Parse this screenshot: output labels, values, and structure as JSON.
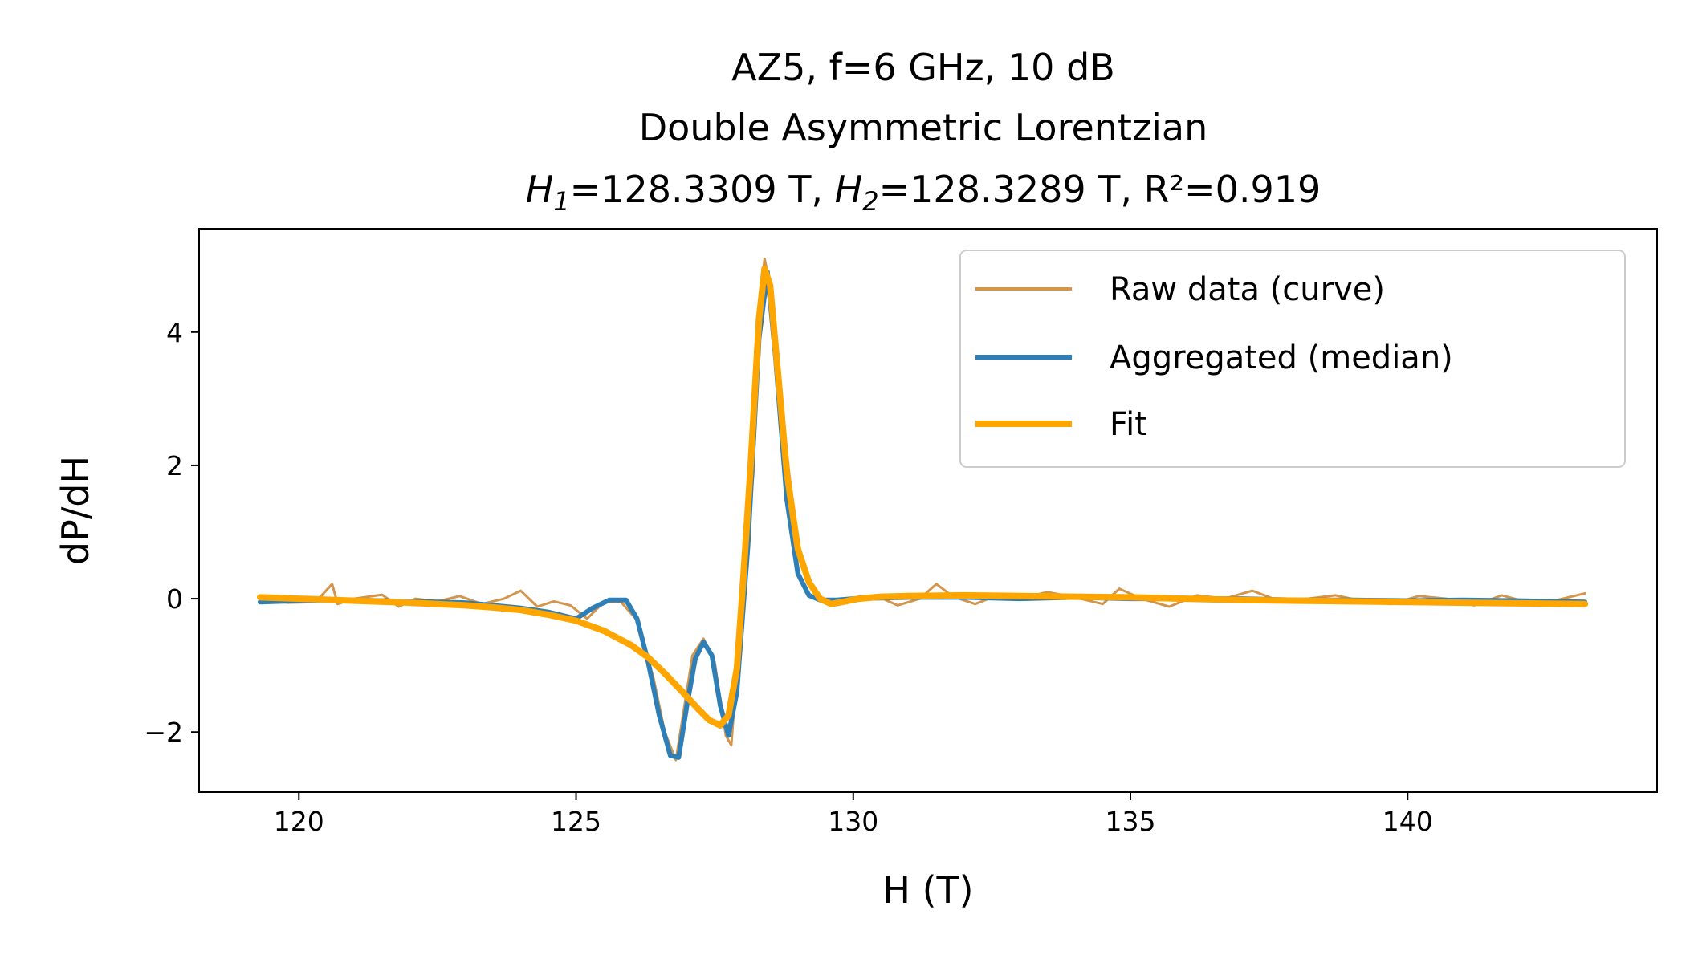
{
  "chart_data": {
    "type": "line",
    "title_lines": [
      "AZ5, f=6 GHz, 10 dB",
      "Double Asymmetric Lorentzian",
      {
        "h1_symbol": "H",
        "h1_sub": "1",
        "h1_value": "=128.3309 T, ",
        "h2_symbol": "H",
        "h2_sub": "2",
        "h2_value": "=128.3289 T, R²=0.919"
      }
    ],
    "xlabel": "H (T)",
    "ylabel": "dP/dH",
    "xlim": [
      118.2,
      144.5
    ],
    "ylim": [
      -2.9,
      5.55
    ],
    "xticks": [
      120,
      125,
      130,
      135,
      140
    ],
    "xtick_labels": [
      "120",
      "125",
      "130",
      "135",
      "140"
    ],
    "yticks": [
      -2,
      0,
      2,
      4
    ],
    "ytick_labels": [
      "−2",
      "0",
      "2",
      "4"
    ],
    "grid": false,
    "legend_position": "upper right",
    "legend": [
      {
        "label": "Raw data (curve)",
        "color": "#D4954A"
      },
      {
        "label": "Aggregated (median)",
        "color": "#2E7EB8"
      },
      {
        "label": "Fit",
        "color": "#FFA500"
      }
    ],
    "series": [
      {
        "name": "Raw data (curve)",
        "color": "#D4954A",
        "x": [
          119.3,
          119.8,
          120.3,
          120.6,
          120.7,
          121.0,
          121.5,
          121.8,
          122.1,
          122.5,
          122.9,
          123.3,
          123.7,
          124.0,
          124.3,
          124.6,
          124.9,
          125.2,
          125.5,
          125.8,
          126.1,
          126.4,
          126.6,
          126.8,
          126.9,
          127.1,
          127.3,
          127.5,
          127.7,
          127.8,
          128.0,
          128.2,
          128.3,
          128.4,
          128.5,
          128.7,
          128.9,
          129.1,
          129.4,
          129.7,
          130.0,
          130.4,
          130.8,
          131.2,
          131.5,
          131.8,
          132.2,
          132.6,
          133.0,
          133.5,
          134.0,
          134.5,
          134.8,
          135.2,
          135.7,
          136.2,
          136.7,
          137.2,
          137.7,
          138.2,
          138.7,
          139.2,
          139.7,
          140.2,
          140.7,
          141.2,
          141.7,
          142.2,
          142.7,
          143.2
        ],
        "y": [
          0.0,
          -0.06,
          -0.05,
          0.22,
          -0.08,
          0.0,
          0.06,
          -0.12,
          0.0,
          -0.04,
          0.04,
          -0.08,
          0.0,
          0.12,
          -0.12,
          -0.04,
          -0.1,
          -0.3,
          -0.05,
          -0.04,
          -0.32,
          -1.2,
          -2.0,
          -2.42,
          -1.9,
          -0.85,
          -0.6,
          -0.95,
          -2.05,
          -2.2,
          0.05,
          1.9,
          4.3,
          5.1,
          4.7,
          3.0,
          1.45,
          0.42,
          0.0,
          -0.05,
          0.0,
          0.05,
          -0.1,
          0.0,
          0.22,
          0.03,
          -0.08,
          0.05,
          0.0,
          0.1,
          0.02,
          -0.08,
          0.15,
          0.0,
          -0.12,
          0.05,
          0.0,
          0.12,
          -0.04,
          0.0,
          0.05,
          -0.04,
          -0.08,
          0.04,
          0.0,
          -0.1,
          0.05,
          -0.06,
          -0.02,
          0.08
        ]
      },
      {
        "name": "Aggregated (median)",
        "color": "#2E7EB8",
        "x": [
          119.3,
          120.0,
          121.0,
          122.0,
          123.0,
          124.0,
          124.5,
          125.0,
          125.3,
          125.6,
          125.9,
          126.1,
          126.3,
          126.5,
          126.7,
          126.85,
          127.0,
          127.15,
          127.3,
          127.45,
          127.6,
          127.75,
          127.9,
          128.1,
          128.3,
          128.45,
          128.6,
          128.8,
          129.0,
          129.2,
          129.4,
          129.7,
          130.0,
          131.0,
          132.0,
          133.0,
          134.0,
          135.0,
          136.0,
          137.0,
          138.0,
          139.0,
          140.0,
          141.0,
          142.0,
          143.2
        ],
        "y": [
          -0.05,
          -0.03,
          -0.02,
          -0.04,
          -0.06,
          -0.14,
          -0.2,
          -0.3,
          -0.14,
          -0.02,
          -0.02,
          -0.3,
          -0.95,
          -1.75,
          -2.35,
          -2.38,
          -1.6,
          -0.9,
          -0.65,
          -0.85,
          -1.6,
          -2.05,
          -1.4,
          0.8,
          3.9,
          4.9,
          3.6,
          1.5,
          0.38,
          0.05,
          -0.02,
          -0.02,
          0.0,
          0.02,
          0.02,
          0.0,
          0.02,
          0.0,
          0.0,
          0.0,
          -0.02,
          -0.02,
          -0.03,
          -0.02,
          -0.03,
          -0.05
        ]
      },
      {
        "name": "Fit",
        "color": "#FFA500",
        "x": [
          119.3,
          120.0,
          121.0,
          122.0,
          123.0,
          123.5,
          124.0,
          124.5,
          125.0,
          125.5,
          126.0,
          126.3,
          126.6,
          126.9,
          127.2,
          127.4,
          127.6,
          127.75,
          127.9,
          128.0,
          128.15,
          128.3,
          128.4,
          128.5,
          128.65,
          128.8,
          129.0,
          129.2,
          129.4,
          129.6,
          129.8,
          130.1,
          130.5,
          131.0,
          132.0,
          133.0,
          134.0,
          135.0,
          136.0,
          137.0,
          138.0,
          139.0,
          140.0,
          141.0,
          142.0,
          143.2
        ],
        "y": [
          0.02,
          0.0,
          -0.03,
          -0.06,
          -0.1,
          -0.13,
          -0.17,
          -0.24,
          -0.33,
          -0.48,
          -0.7,
          -0.88,
          -1.12,
          -1.38,
          -1.65,
          -1.82,
          -1.9,
          -1.75,
          -1.05,
          0.1,
          2.0,
          4.2,
          4.95,
          4.7,
          3.3,
          1.9,
          0.75,
          0.25,
          0.0,
          -0.08,
          -0.05,
          0.0,
          0.03,
          0.04,
          0.05,
          0.04,
          0.03,
          0.02,
          0.0,
          -0.02,
          -0.03,
          -0.04,
          -0.05,
          -0.06,
          -0.07,
          -0.08
        ]
      }
    ]
  }
}
